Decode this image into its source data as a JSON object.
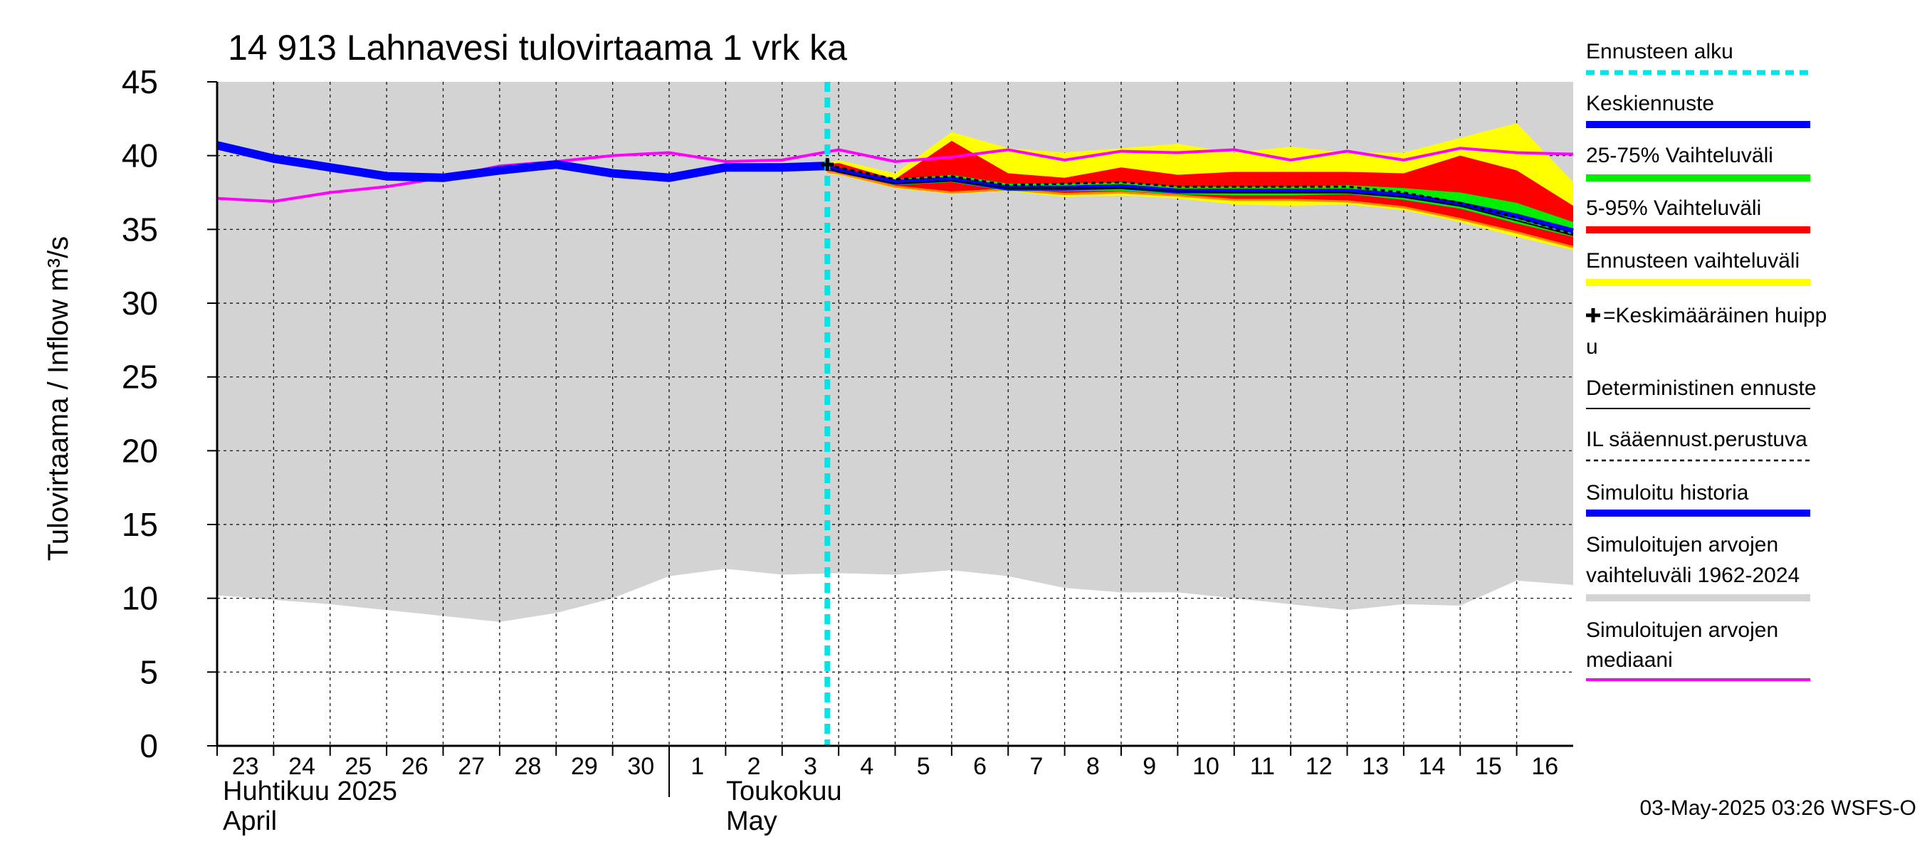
{
  "chart_data": {
    "type": "area",
    "title": "14 913 Lahnavesi tulovirtaama 1 vrk ka",
    "ylabel": "Tulovirtaama / Inflow   m³/s",
    "ylim": [
      0,
      45
    ],
    "yticks": [
      "0",
      "5",
      "10",
      "15",
      "20",
      "25",
      "30",
      "35",
      "40",
      "45"
    ],
    "x_day_labels": [
      "23",
      "24",
      "25",
      "26",
      "27",
      "28",
      "29",
      "30",
      "1",
      "2",
      "3",
      "4",
      "5",
      "6",
      "7",
      "8",
      "9",
      "10",
      "11",
      "12",
      "13",
      "14",
      "15",
      "16"
    ],
    "months": [
      {
        "fi": "Huhtikuu  2025",
        "en": "April",
        "start_index": 0
      },
      {
        "fi": "Toukokuu",
        "en": "May",
        "start_index": 8
      }
    ],
    "forecast_start_index": 10.8,
    "grid": true,
    "footer": "03-May-2025 03:26 WSFS-O",
    "series": {
      "simulated_range": {
        "name": "Simuloitujen arvojen vaihteluväli 1962-2024",
        "x": [
          0,
          1,
          2,
          3,
          4,
          5,
          6,
          7,
          8,
          9,
          10,
          11,
          12,
          13,
          14,
          15,
          16,
          17,
          18,
          19,
          20,
          21,
          22,
          23,
          24
        ],
        "low": [
          10.2,
          9.9,
          9.6,
          9.2,
          8.8,
          8.4,
          9.0,
          10.0,
          11.5,
          12.0,
          11.6,
          11.7,
          11.6,
          11.9,
          11.5,
          10.7,
          10.4,
          10.4,
          10.0,
          9.6,
          9.2,
          9.6,
          9.5,
          11.2,
          10.9
        ],
        "high": [
          45,
          45,
          45,
          45,
          45,
          45,
          45,
          45,
          45,
          45,
          45,
          45,
          45,
          45,
          45,
          45,
          45,
          45,
          45,
          45,
          45,
          45,
          45,
          45,
          45
        ]
      },
      "median": {
        "name": "Simuloitujen arvojen mediaani",
        "x": [
          0,
          1,
          2,
          3,
          4,
          5,
          6,
          7,
          8,
          9,
          10,
          11,
          12,
          13,
          14,
          15,
          16,
          17,
          18,
          19,
          20,
          21,
          22,
          23,
          24
        ],
        "values": [
          37.1,
          36.9,
          37.5,
          37.9,
          38.5,
          39.3,
          39.6,
          40.0,
          40.2,
          39.6,
          39.7,
          40.4,
          39.6,
          39.9,
          40.4,
          39.7,
          40.3,
          40.2,
          40.4,
          39.7,
          40.3,
          39.7,
          40.5,
          40.2,
          40.1
        ]
      },
      "history": {
        "name": "Simuloitu historia",
        "x": [
          0,
          1,
          2,
          3,
          4,
          5,
          6,
          7,
          8,
          9,
          10,
          10.8
        ],
        "values": [
          40.7,
          39.8,
          39.2,
          38.6,
          38.5,
          39.0,
          39.4,
          38.8,
          38.5,
          39.2,
          39.2,
          39.3
        ]
      },
      "forecast_range": {
        "name": "Ennusteen vaihteluväli",
        "x": [
          10.8,
          11,
          12,
          13,
          14,
          15,
          16,
          17,
          18,
          19,
          20,
          21,
          22,
          23,
          24
        ],
        "low": [
          38.8,
          38.7,
          37.8,
          37.4,
          37.6,
          37.2,
          37.3,
          37.1,
          36.7,
          36.6,
          36.7,
          36.3,
          35.5,
          34.5,
          33.6
        ],
        "high": [
          39.5,
          39.7,
          38.8,
          41.6,
          40.5,
          40.2,
          40.5,
          40.8,
          40.2,
          40.6,
          40.2,
          40.2,
          41.2,
          42.2,
          38.2
        ]
      },
      "p5_95": {
        "name": "5-95% Vaihteluväli",
        "x": [
          10.8,
          11,
          12,
          13,
          14,
          15,
          16,
          17,
          18,
          19,
          20,
          21,
          22,
          23,
          24
        ],
        "low": [
          38.9,
          38.8,
          37.9,
          37.5,
          37.7,
          37.4,
          37.5,
          37.3,
          37.0,
          37.0,
          36.9,
          36.5,
          35.7,
          34.8,
          33.8
        ],
        "high": [
          39.4,
          39.5,
          38.4,
          41.0,
          38.8,
          38.5,
          39.2,
          38.7,
          38.9,
          38.9,
          38.9,
          38.8,
          40.0,
          39.0,
          36.6
        ]
      },
      "p25_75": {
        "name": "25-75% Vaihteluväli",
        "x": [
          10.8,
          11,
          12,
          13,
          14,
          15,
          16,
          17,
          18,
          19,
          20,
          21,
          22,
          23,
          24
        ],
        "low": [
          39.1,
          38.9,
          38.0,
          38.2,
          37.6,
          37.6,
          37.6,
          37.4,
          37.3,
          37.3,
          37.4,
          37.0,
          36.4,
          35.4,
          34.5
        ],
        "high": [
          39.3,
          39.1,
          38.4,
          38.7,
          38.1,
          38.1,
          38.2,
          37.9,
          37.9,
          37.9,
          38.0,
          37.8,
          37.5,
          36.8,
          35.5
        ]
      },
      "mean_forecast": {
        "name": "Keskiennuste",
        "x": [
          10.8,
          11,
          12,
          13,
          14,
          15,
          16,
          17,
          18,
          19,
          20,
          21,
          22,
          23,
          24
        ],
        "values": [
          39.2,
          39.0,
          38.2,
          38.4,
          37.8,
          37.8,
          37.9,
          37.6,
          37.6,
          37.6,
          37.6,
          37.3,
          36.7,
          35.9,
          34.9
        ]
      },
      "il_forecast": {
        "name": "IL sääennust.perustuva",
        "x": [
          10.8,
          11,
          12,
          13,
          14,
          15,
          16,
          17,
          18,
          19,
          20,
          21,
          22,
          23,
          24
        ],
        "values": [
          39.4,
          39.2,
          38.4,
          38.6,
          38.0,
          38.1,
          38.2,
          37.9,
          37.9,
          37.9,
          37.9,
          37.5,
          36.8,
          35.8,
          34.7
        ]
      },
      "deterministic": {
        "name": "Deterministinen ennuste",
        "x": [
          10.8,
          11,
          12,
          13,
          14,
          15,
          16,
          17,
          18,
          19,
          20,
          21,
          22,
          23,
          24
        ],
        "values": [
          39.2,
          38.9,
          38.1,
          38.3,
          37.8,
          37.8,
          37.8,
          37.6,
          37.5,
          37.5,
          37.5,
          37.2,
          36.6,
          35.6,
          34.6
        ]
      },
      "mean_peak": {
        "name": "=Keskimääräinen huippu",
        "x": 10.8,
        "value": 39.4
      }
    },
    "legend": [
      {
        "label": "Ennusteen alku",
        "color": "#00e5e5",
        "style": "dashed-cyan"
      },
      {
        "label": "Keskiennuste",
        "color": "#0000ff",
        "style": "thick"
      },
      {
        "label": "25-75% Vaihteluväli",
        "color": "#00ee00",
        "style": "thick"
      },
      {
        "label": "5-95% Vaihteluväli",
        "color": "#ff0000",
        "style": "thick"
      },
      {
        "label": "Ennusteen vaihteluväli",
        "color": "#ffff00",
        "style": "thick"
      },
      {
        "label": "=Keskimääräinen huipp",
        "label2": "u",
        "color": "#000000",
        "style": "plus"
      },
      {
        "label": "Deterministinen ennuste",
        "color": "#000000",
        "style": "thin"
      },
      {
        "label": "IL sääennust.perustuva",
        "color": "#000000",
        "style": "dotted"
      },
      {
        "label": "Simuloitu historia",
        "color": "#0000ff",
        "style": "thick"
      },
      {
        "label": "Simuloitujen arvojen",
        "label2": "vaihteluväli 1962-2024",
        "color": "#d3d3d3",
        "style": "thick"
      },
      {
        "label": "Simuloitujen arvojen",
        "label2": "mediaani",
        "color": "#ff00ff",
        "style": "medium"
      }
    ],
    "colors": {
      "gray_band": "#d3d3d3",
      "yellow": "#ffff00",
      "red": "#ff0000",
      "green": "#00ee00",
      "blue": "#0000ff",
      "magenta": "#ff00ff",
      "cyan": "#00e5e5",
      "orange": "#ff8c00"
    }
  }
}
